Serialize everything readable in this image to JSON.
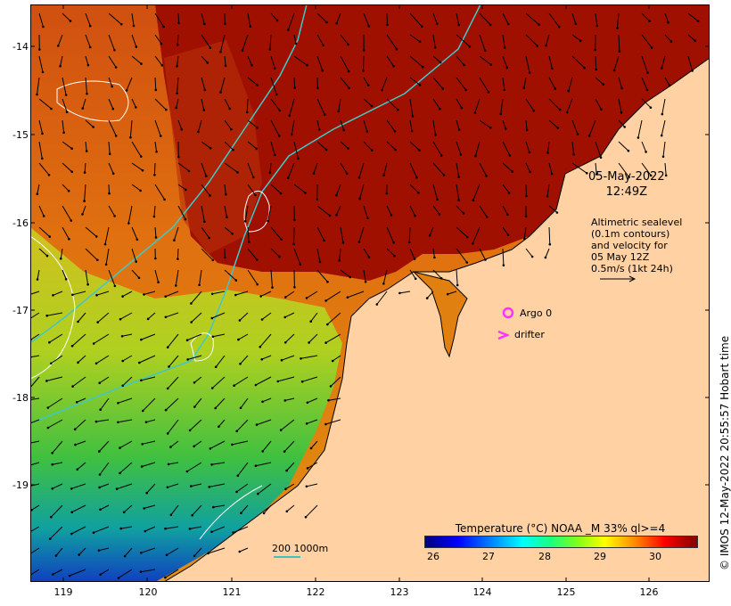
{
  "map": {
    "background_ocean_color": "#ffd1a3",
    "land_color": "#ffd1a3",
    "contour_color": "#40c8c8"
  },
  "axes": {
    "y_ticks": [
      "-14",
      "-15",
      "-16",
      "-17",
      "-18",
      "-19"
    ],
    "x_ticks": [
      "119",
      "120",
      "121",
      "122",
      "123",
      "124",
      "125",
      "126"
    ]
  },
  "annotation": {
    "date": "05-May-2022",
    "time": "12:49Z",
    "info_lines": [
      "Altimetric sealevel",
      "(0.1m contours)",
      "and velocity for",
      "05 May 12Z",
      "0.5m/s (1kt 24h)"
    ]
  },
  "legend": {
    "argo_label": "Argo 0",
    "drifter_label": "drifter",
    "argo_color": "#ff33ff",
    "drifter_color": "#ff33ff"
  },
  "colorbar": {
    "title": "Temperature (°C) NOAA _M 33% ql>=4",
    "ticks": [
      "26",
      "27",
      "28",
      "29",
      "30"
    ]
  },
  "scale": {
    "label": "200  1000m"
  },
  "credit": "© IMOS 12-May-2022 20:55:57 Hobart time"
}
